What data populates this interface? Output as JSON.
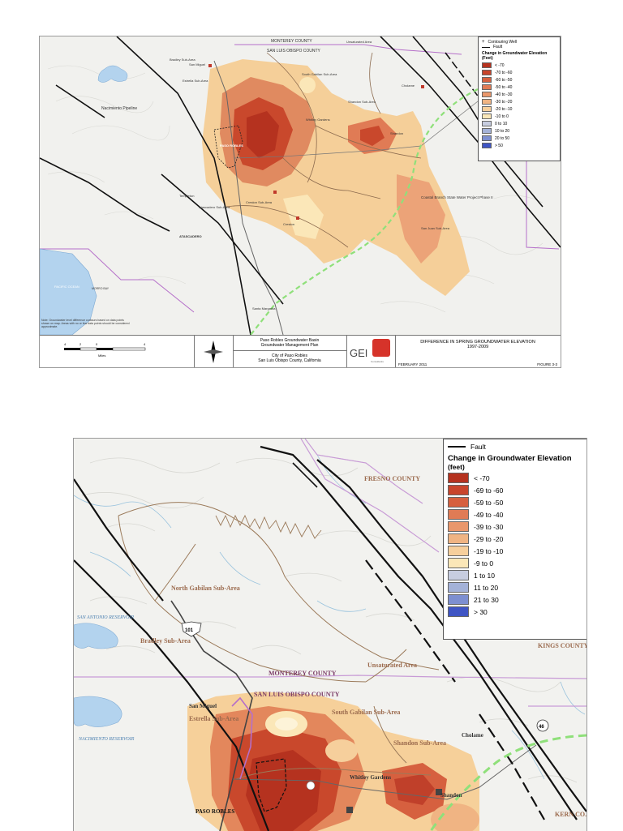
{
  "top_map": {
    "legend": {
      "well_label": "Contouring Well",
      "fault_label": "Fault",
      "title": "Change in Groundwater Elevation",
      "unit": "(Feet)",
      "items": [
        {
          "label": "< -70",
          "color": "#b5321f"
        },
        {
          "label": "-70 to -60",
          "color": "#c8452c"
        },
        {
          "label": "-60 to -50",
          "color": "#d6603f"
        },
        {
          "label": "-50 to -40",
          "color": "#e07b55"
        },
        {
          "label": "-40 to -30",
          "color": "#e9976c"
        },
        {
          "label": "-30 to -20",
          "color": "#f0b483"
        },
        {
          "label": "-20 to -10",
          "color": "#f6cf9c"
        },
        {
          "label": "-10 to 0",
          "color": "#fbe7b8"
        },
        {
          "label": "0 to 10",
          "color": "#c7cde0"
        },
        {
          "label": "10 to 20",
          "color": "#a4b2d8"
        },
        {
          "label": "20 to 50",
          "color": "#7d8fd0"
        },
        {
          "label": "> 50",
          "color": "#3f55c4"
        }
      ]
    },
    "labels": {
      "monterey_county": "MONTEREY COUNTY",
      "slo_county": "SAN LUIS OBISPO COUNTY",
      "unsaturated_area": "Unsaturated Area",
      "bradley": "Bradley Sub-Area",
      "san_miguel": "San Miguel",
      "estrella": "Estrella Sub-Area",
      "south_gabilan": "South Gabilan Sub-Area",
      "shandon_sub": "Shandon Sub-Area",
      "cholame": "Cholame",
      "nacimiento": "Nacimiento Pipeline",
      "whitley": "Whitley Gardens",
      "shandon": "Shandon",
      "paso_robles": "PASO ROBLES",
      "templeton": "Templeton",
      "atascadero_sub": "Atascadero Sub-Area",
      "creston": "Creston Sub-Area",
      "creston_town": "Creston",
      "atascadero": "ATASCADERO",
      "coastal_branch": "Coastal Branch State Water Project Phase II",
      "san_juan": "San Juan Sub-Area",
      "pacific_ocean": "PACIFIC OCEAN",
      "morro_bay": "MORRO BAY",
      "santa_margarita": "Santa Margarita",
      "note": "Note: Groundwater level difference contours based on data points shown on map. Areas with no or few data points should be considered approximate."
    },
    "scale": {
      "ticks": [
        "4",
        "2",
        "0",
        "4"
      ],
      "unit": "Miles"
    },
    "title_block": {
      "plan_line1": "Paso Robles Groundwater Basin",
      "plan_line2": "Groundwater Management Plan",
      "city_line1": "City of Paso Robles",
      "city_line2": "San Luis Obispo County, California",
      "logo_text": "GEI",
      "logo_sub": "Consultants",
      "figure_title_line1": "DIFFERENCE IN SPRING GROUNDWATER ELEVATION",
      "figure_title_line2": "1997-2009",
      "date": "FEBRUARY 2011",
      "figure_no": "FIGURE 3-3"
    }
  },
  "bottom_map": {
    "legend": {
      "fault_label": "Fault",
      "title": "Change in Groundwater Elevation",
      "unit": "(feet)",
      "items": [
        {
          "label": "< -70",
          "color": "#b5321f"
        },
        {
          "label": "-69 to -60",
          "color": "#c8452c"
        },
        {
          "label": "-59 to -50",
          "color": "#d6603f"
        },
        {
          "label": "-49 to -40",
          "color": "#e07b55"
        },
        {
          "label": "-39 to -30",
          "color": "#e9976c"
        },
        {
          "label": "-29 to -20",
          "color": "#f0b483"
        },
        {
          "label": "-19 to -10",
          "color": "#f6cf9c"
        },
        {
          "label": "-9 to 0",
          "color": "#fbe7b8"
        },
        {
          "label": "1 to 10",
          "color": "#c7cde0"
        },
        {
          "label": "11 to 20",
          "color": "#a4b2d8"
        },
        {
          "label": "21 to 30",
          "color": "#7d8fd0"
        },
        {
          "label": "> 30",
          "color": "#3f55c4"
        }
      ]
    },
    "labels": {
      "fresno_county": "FRESNO COUNTY",
      "kings_county": "KINGS COUNTY",
      "kern_co": "KERN CO.",
      "north_gabilan": "North Gabilan Sub-Area",
      "bradley": "Bradley Sub-Area",
      "san_antonio": "SAN ANTONIO RESERVOIR",
      "nacimiento_res": "NACIMIENTO RESERVOIR",
      "monterey_county": "MONTEREY COUNTY",
      "unsaturated_area": "Unsaturated Area",
      "slo_county": "SAN LUIS OBISPO COUNTY",
      "san_miguel": "San Miguel",
      "estrella": "Estrella Sub-Area",
      "south_gabilan": "South Gabilan Sub-Area",
      "shandon_sub": "Shandon Sub-Area",
      "cholame": "Cholame",
      "whitley": "Whitley Gardens",
      "shandon": "Shandon",
      "paso_robles": "PASO ROBLES",
      "hwy_101": "101",
      "hwy_46": "46"
    }
  }
}
